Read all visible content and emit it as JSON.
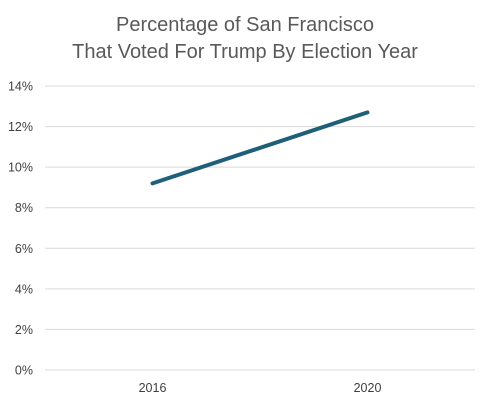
{
  "chart_data": {
    "type": "line",
    "title_lines": [
      "Percentage of San Francisco",
      "That Voted For Trump By Election Year"
    ],
    "xlabel": "",
    "ylabel": "",
    "categories": [
      "2016",
      "2020"
    ],
    "series": [
      {
        "values": [
          9.2,
          12.7
        ],
        "color": "#1f5f7a"
      }
    ],
    "y_ticks": [
      "0%",
      "2%",
      "4%",
      "6%",
      "8%",
      "10%",
      "12%",
      "14%"
    ],
    "ylim": [
      0,
      14
    ],
    "y_unit": "%",
    "grid": true,
    "legend": "none"
  }
}
